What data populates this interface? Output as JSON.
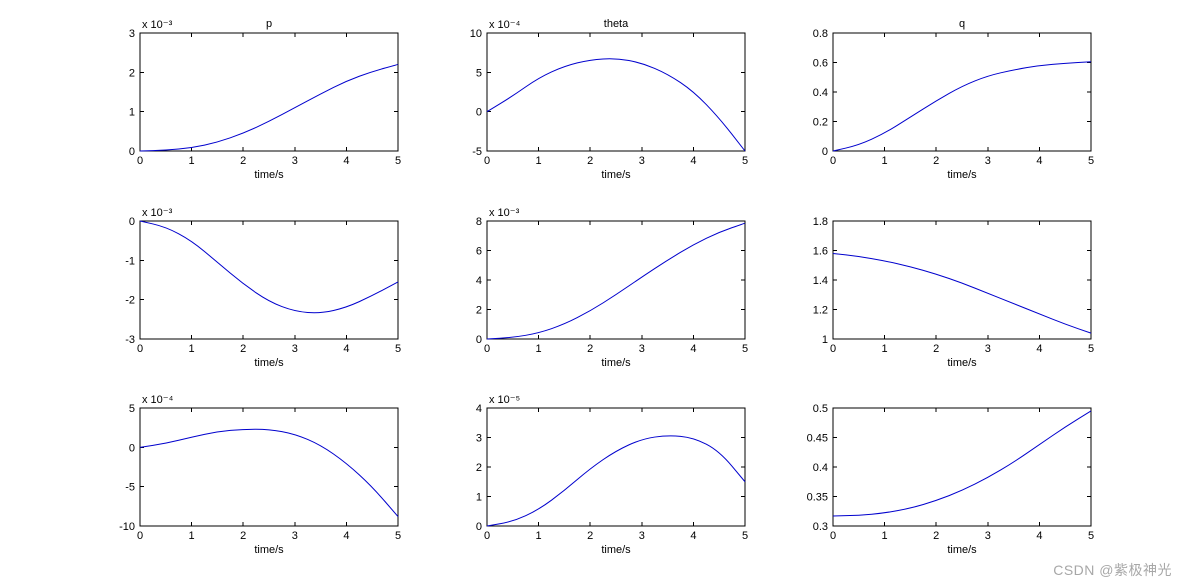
{
  "figure": {
    "background_color": "#ffffff",
    "panel_gap_x": 40,
    "panel_gap_y": 18,
    "font_family": "Arial",
    "label_fontsize": 11,
    "title_fontsize": 11,
    "line_color": "#0000cd",
    "axis_color": "#000000",
    "line_width": 1
  },
  "watermark": "CSDN @紫极神光",
  "panels": [
    {
      "title": "p",
      "xlabel": "time/s",
      "exponent": "x 10⁻³",
      "xlim": [
        0,
        5
      ],
      "xticks": [
        0,
        1,
        2,
        3,
        4,
        5
      ],
      "ylim": [
        0,
        3
      ],
      "yticks": [
        0,
        1,
        2,
        3
      ],
      "x": [
        0,
        0.5,
        1,
        1.5,
        2,
        2.5,
        3,
        3.5,
        4,
        4.5,
        5
      ],
      "y": [
        0,
        0.02,
        0.08,
        0.22,
        0.45,
        0.75,
        1.1,
        1.45,
        1.78,
        2.02,
        2.2
      ]
    },
    {
      "title": "theta",
      "xlabel": "time/s",
      "exponent": "x 10⁻⁴",
      "xlim": [
        0,
        5
      ],
      "xticks": [
        0,
        1,
        2,
        3,
        4,
        5
      ],
      "ylim": [
        -5,
        10
      ],
      "yticks": [
        -5,
        0,
        5,
        10
      ],
      "x": [
        0,
        0.5,
        1,
        1.5,
        2,
        2.5,
        3,
        3.5,
        4,
        4.5,
        5
      ],
      "y": [
        0,
        2.0,
        4.3,
        5.8,
        6.6,
        6.8,
        6.2,
        4.8,
        2.6,
        -0.8,
        -5.0
      ]
    },
    {
      "title": "q",
      "xlabel": "time/s",
      "exponent": "",
      "xlim": [
        0,
        5
      ],
      "xticks": [
        0,
        1,
        2,
        3,
        4,
        5
      ],
      "ylim": [
        0,
        0.8
      ],
      "yticks": [
        0,
        0.2,
        0.4,
        0.6,
        0.8
      ],
      "x": [
        0,
        0.5,
        1,
        1.5,
        2,
        2.5,
        3,
        3.5,
        4,
        4.5,
        5
      ],
      "y": [
        0,
        0.04,
        0.12,
        0.23,
        0.34,
        0.44,
        0.51,
        0.55,
        0.58,
        0.595,
        0.605
      ]
    },
    {
      "title": "",
      "xlabel": "time/s",
      "exponent": "x 10⁻³",
      "xlim": [
        0,
        5
      ],
      "xticks": [
        0,
        1,
        2,
        3,
        4,
        5
      ],
      "ylim": [
        -3,
        0
      ],
      "yticks": [
        -3,
        -2,
        -1,
        0
      ],
      "x": [
        0,
        0.5,
        1,
        1.5,
        2,
        2.5,
        3,
        3.5,
        4,
        4.5,
        5
      ],
      "y": [
        0,
        -0.15,
        -0.5,
        -1.05,
        -1.6,
        -2.05,
        -2.3,
        -2.35,
        -2.2,
        -1.9,
        -1.55
      ]
    },
    {
      "title": "",
      "xlabel": "time/s",
      "exponent": "x 10⁻³",
      "xlim": [
        0,
        5
      ],
      "xticks": [
        0,
        1,
        2,
        3,
        4,
        5
      ],
      "ylim": [
        0,
        8
      ],
      "yticks": [
        0,
        2,
        4,
        6,
        8
      ],
      "x": [
        0,
        0.5,
        1,
        1.5,
        2,
        2.5,
        3,
        3.5,
        4,
        4.5,
        5
      ],
      "y": [
        0,
        0.1,
        0.4,
        1.0,
        1.9,
        3.0,
        4.2,
        5.35,
        6.4,
        7.25,
        7.85
      ]
    },
    {
      "title": "",
      "xlabel": "time/s",
      "exponent": "",
      "xlim": [
        0,
        5
      ],
      "xticks": [
        0,
        1,
        2,
        3,
        4,
        5
      ],
      "ylim": [
        1,
        1.8
      ],
      "yticks": [
        1,
        1.2,
        1.4,
        1.6,
        1.8
      ],
      "x": [
        0,
        0.5,
        1,
        1.5,
        2,
        2.5,
        3,
        3.5,
        4,
        4.5,
        5
      ],
      "y": [
        1.58,
        1.56,
        1.53,
        1.49,
        1.44,
        1.38,
        1.31,
        1.24,
        1.17,
        1.1,
        1.04
      ]
    },
    {
      "title": "",
      "xlabel": "time/s",
      "exponent": "x 10⁻⁴",
      "xlim": [
        0,
        5
      ],
      "xticks": [
        0,
        1,
        2,
        3,
        4,
        5
      ],
      "ylim": [
        -10,
        5
      ],
      "yticks": [
        -10,
        -5,
        0,
        5
      ],
      "x": [
        0,
        0.5,
        1,
        1.5,
        2,
        2.5,
        3,
        3.5,
        4,
        4.5,
        5
      ],
      "y": [
        0,
        0.5,
        1.3,
        2.0,
        2.3,
        2.3,
        1.7,
        0.3,
        -2.0,
        -5.0,
        -8.8
      ]
    },
    {
      "title": "",
      "xlabel": "time/s",
      "exponent": "x 10⁻⁵",
      "xlim": [
        0,
        5
      ],
      "xticks": [
        0,
        1,
        2,
        3,
        4,
        5
      ],
      "ylim": [
        0,
        4
      ],
      "yticks": [
        0,
        1,
        2,
        3,
        4
      ],
      "x": [
        0,
        0.5,
        1,
        1.5,
        2,
        2.5,
        3,
        3.5,
        4,
        4.5,
        5
      ],
      "y": [
        0,
        0.15,
        0.55,
        1.2,
        1.95,
        2.55,
        2.95,
        3.08,
        3.0,
        2.55,
        1.5
      ]
    },
    {
      "title": "",
      "xlabel": "time/s",
      "exponent": "",
      "xlim": [
        0,
        5
      ],
      "xticks": [
        0,
        1,
        2,
        3,
        4,
        5
      ],
      "ylim": [
        0.3,
        0.5
      ],
      "yticks": [
        0.3,
        0.35,
        0.4,
        0.45,
        0.5
      ],
      "x": [
        0,
        0.5,
        1,
        1.5,
        2,
        2.5,
        3,
        3.5,
        4,
        4.5,
        5
      ],
      "y": [
        0.317,
        0.318,
        0.322,
        0.33,
        0.343,
        0.36,
        0.382,
        0.408,
        0.438,
        0.468,
        0.495
      ]
    }
  ]
}
